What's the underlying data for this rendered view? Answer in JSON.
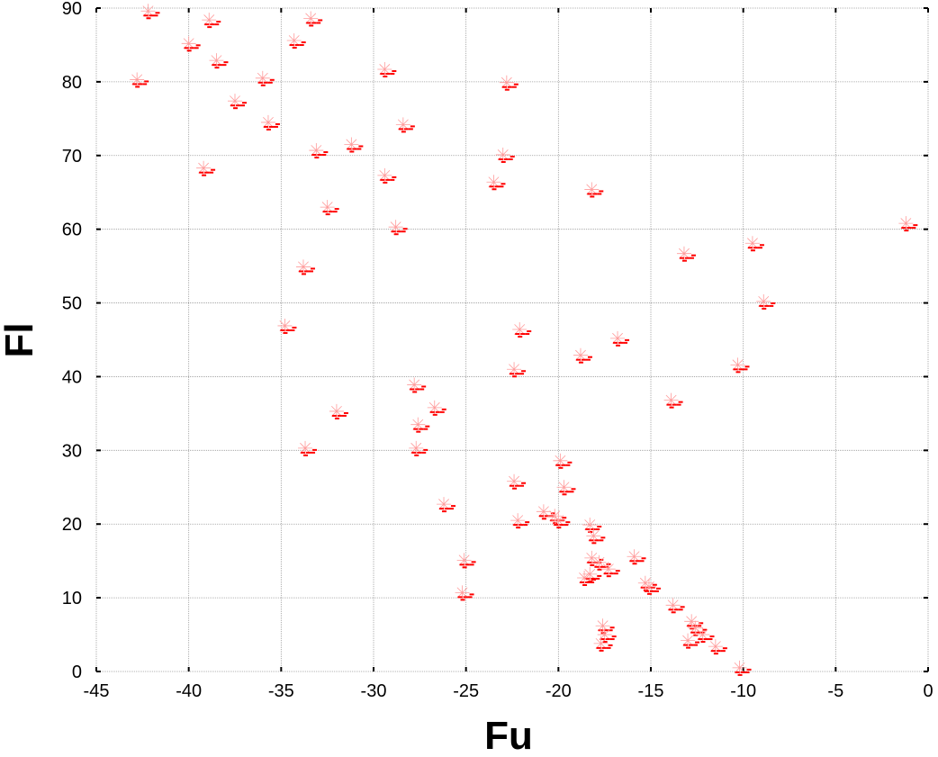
{
  "chart_data": {
    "type": "scatter",
    "title": "",
    "xlabel": "Fu",
    "ylabel": "Fl",
    "xlim": [
      -45,
      0
    ],
    "ylim": [
      0,
      90
    ],
    "xticks": [
      -45,
      -40,
      -35,
      -30,
      -25,
      -20,
      -15,
      -10,
      -5,
      0
    ],
    "yticks": [
      0,
      10,
      20,
      30,
      40,
      50,
      60,
      70,
      80,
      90
    ],
    "grid": true,
    "marker_color": "#ff0000",
    "points": [
      [
        -42.2,
        89.6
      ],
      [
        -38.9,
        88.4
      ],
      [
        -33.4,
        88.6
      ],
      [
        -40.0,
        85.2
      ],
      [
        -34.3,
        85.6
      ],
      [
        -38.5,
        82.9
      ],
      [
        -42.8,
        80.3
      ],
      [
        -36.0,
        80.5
      ],
      [
        -29.4,
        81.7
      ],
      [
        -22.8,
        79.9
      ],
      [
        -37.5,
        77.4
      ],
      [
        -35.7,
        74.5
      ],
      [
        -28.4,
        74.2
      ],
      [
        -33.1,
        70.7
      ],
      [
        -31.2,
        71.5
      ],
      [
        -23.0,
        70.1
      ],
      [
        -39.2,
        68.3
      ],
      [
        -29.4,
        67.3
      ],
      [
        -23.5,
        66.4
      ],
      [
        -18.2,
        65.4
      ],
      [
        -32.5,
        63.0
      ],
      [
        -28.8,
        60.3
      ],
      [
        -1.2,
        60.8
      ],
      [
        -9.5,
        58.1
      ],
      [
        -13.2,
        56.7
      ],
      [
        -33.8,
        54.9
      ],
      [
        -8.9,
        50.2
      ],
      [
        -22.1,
        46.4
      ],
      [
        -16.8,
        45.2
      ],
      [
        -34.8,
        46.9
      ],
      [
        -18.8,
        42.9
      ],
      [
        -22.4,
        41.0
      ],
      [
        -10.3,
        41.6
      ],
      [
        -27.8,
        38.9
      ],
      [
        -13.9,
        36.8
      ],
      [
        -32.0,
        35.3
      ],
      [
        -26.7,
        35.8
      ],
      [
        -27.6,
        33.5
      ],
      [
        -33.7,
        30.3
      ],
      [
        -27.7,
        30.3
      ],
      [
        -19.9,
        28.6
      ],
      [
        -22.4,
        25.8
      ],
      [
        -19.7,
        25.0
      ],
      [
        -26.2,
        22.7
      ],
      [
        -22.2,
        20.5
      ],
      [
        -20.8,
        21.7
      ],
      [
        -20.2,
        21.1
      ],
      [
        -20.0,
        20.5
      ],
      [
        -18.3,
        19.9
      ],
      [
        -18.1,
        18.4
      ],
      [
        -25.1,
        15.1
      ],
      [
        -18.2,
        15.4
      ],
      [
        -17.8,
        14.8
      ],
      [
        -17.3,
        13.9
      ],
      [
        -18.3,
        13.2
      ],
      [
        -18.6,
        12.7
      ],
      [
        -15.9,
        15.6
      ],
      [
        -15.3,
        12.0
      ],
      [
        -15.1,
        11.5
      ],
      [
        -25.2,
        10.7
      ],
      [
        -13.8,
        9.0
      ],
      [
        -17.6,
        6.2
      ],
      [
        -17.5,
        5.0
      ],
      [
        -17.7,
        3.8
      ],
      [
        -12.8,
        6.8
      ],
      [
        -12.6,
        5.9
      ],
      [
        -13.0,
        4.2
      ],
      [
        -12.2,
        5.0
      ],
      [
        -11.5,
        3.4
      ],
      [
        -10.2,
        0.5
      ]
    ]
  }
}
